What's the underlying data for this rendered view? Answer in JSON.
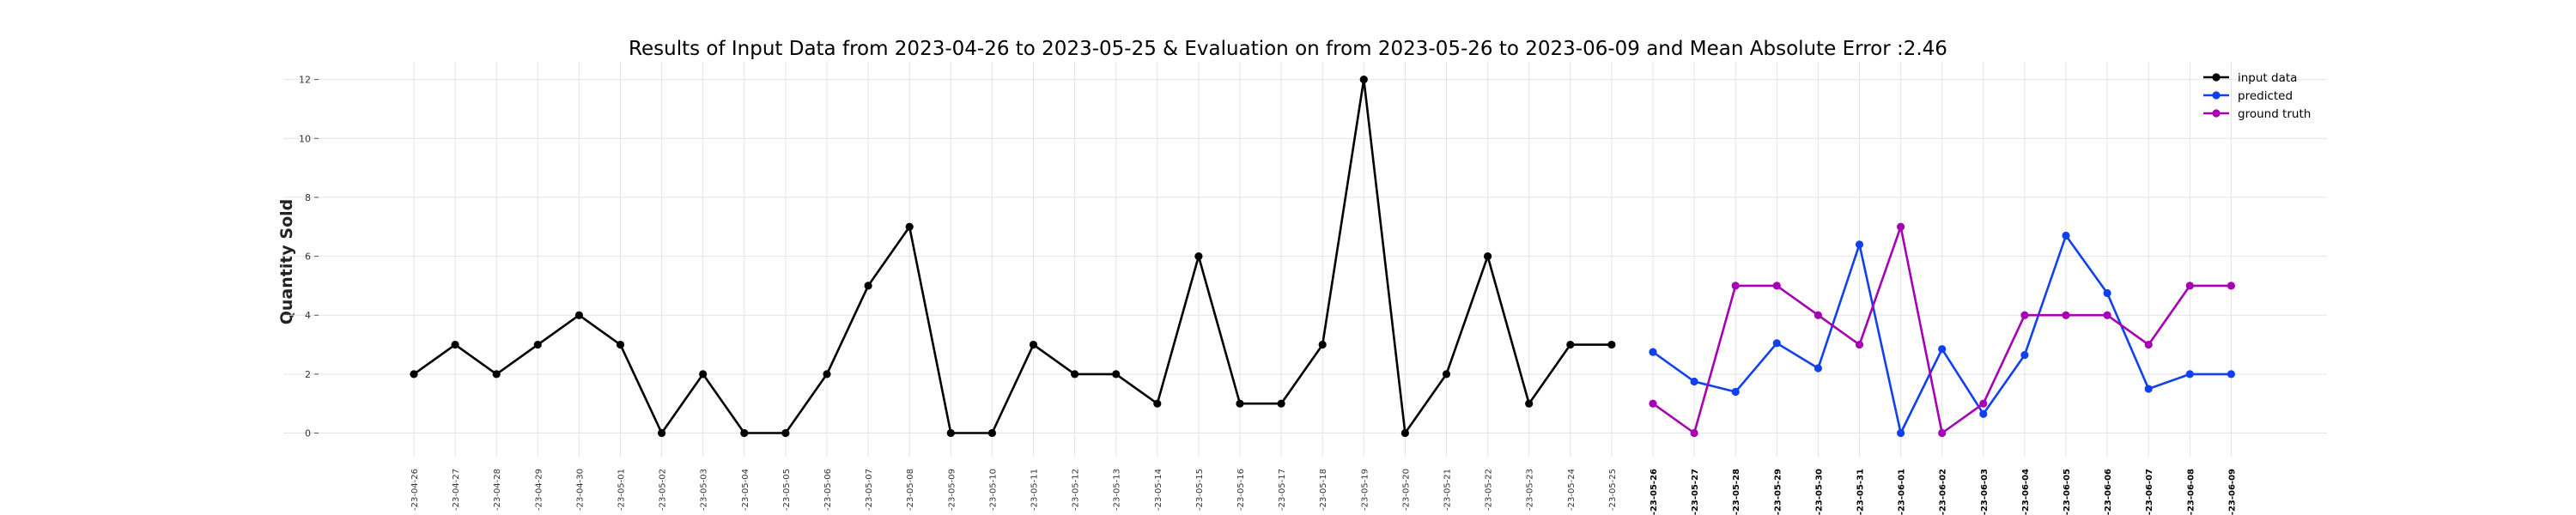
{
  "chart_data": {
    "type": "line",
    "title": "Results of Input Data from 2023-04-26 to 2023-05-25 & Evaluation on from 2023-05-26 to 2023-06-09 and Mean Absolute Error  :2.46",
    "ylabel": "Quantity Sold",
    "ylim": [
      -0.8,
      12.6
    ],
    "yticks": [
      0,
      2,
      4,
      6,
      8,
      10,
      12
    ],
    "grid": true,
    "legend_position": "top-right",
    "x": [
      "2023-04-26",
      "2023-04-27",
      "2023-04-28",
      "2023-04-29",
      "2023-04-30",
      "2023-05-01",
      "2023-05-02",
      "2023-05-03",
      "2023-05-04",
      "2023-05-05",
      "2023-05-06",
      "2023-05-07",
      "2023-05-08",
      "2023-05-09",
      "2023-05-10",
      "2023-05-11",
      "2023-05-12",
      "2023-05-13",
      "2023-05-14",
      "2023-05-15",
      "2023-05-16",
      "2023-05-17",
      "2023-05-18",
      "2023-05-19",
      "2023-05-20",
      "2023-05-21",
      "2023-05-22",
      "2023-05-23",
      "2023-05-24",
      "2023-05-25",
      "2023-05-26",
      "2023-05-27",
      "2023-05-28",
      "2023-05-29",
      "2023-05-30",
      "2023-05-31",
      "2023-06-01",
      "2023-06-02",
      "2023-06-03",
      "2023-06-04",
      "2023-06-05",
      "2023-06-06",
      "2023-06-07",
      "2023-06-08",
      "2023-06-09"
    ],
    "tick_labels": [
      "-23-04-26",
      "-23-04-27",
      "-23-04-28",
      "-23-04-29",
      "-23-04-30",
      "-23-05-01",
      "-23-05-02",
      "-23-05-03",
      "-23-05-04",
      "-23-05-05",
      "-23-05-06",
      "-23-05-07",
      "-23-05-08",
      "-23-05-09",
      "-23-05-10",
      "-23-05-11",
      "-23-05-12",
      "-23-05-13",
      "-23-05-14",
      "-23-05-15",
      "-23-05-16",
      "-23-05-17",
      "-23-05-18",
      "-23-05-19",
      "-23-05-20",
      "-23-05-21",
      "-23-05-22",
      "-23-05-23",
      "-23-05-24",
      "-23-05-25",
      "-23-05-26",
      "-23-05-27",
      "-23-05-28",
      "-23-05-29",
      "-23-05-30",
      "-23-05-31",
      "-23-06-01",
      "-23-06-02",
      "-23-06-03",
      "-23-06-04",
      "-23-06-05",
      "-23-06-06",
      "-23-06-07",
      "-23-06-08",
      "-23-06-09"
    ],
    "series": [
      {
        "name": "input data",
        "color": "#000000",
        "x": [
          "2023-04-26",
          "2023-04-27",
          "2023-04-28",
          "2023-04-29",
          "2023-04-30",
          "2023-05-01",
          "2023-05-02",
          "2023-05-03",
          "2023-05-04",
          "2023-05-05",
          "2023-05-06",
          "2023-05-07",
          "2023-05-08",
          "2023-05-09",
          "2023-05-10",
          "2023-05-11",
          "2023-05-12",
          "2023-05-13",
          "2023-05-14",
          "2023-05-15",
          "2023-05-16",
          "2023-05-17",
          "2023-05-18",
          "2023-05-19",
          "2023-05-20",
          "2023-05-21",
          "2023-05-22",
          "2023-05-23",
          "2023-05-24",
          "2023-05-25"
        ],
        "values": [
          2,
          3,
          2,
          3,
          4,
          3,
          0,
          2,
          0,
          0,
          2,
          5,
          7,
          0,
          0,
          3,
          2,
          2,
          1,
          6,
          1,
          1,
          3,
          12,
          0,
          2,
          6,
          1,
          3,
          3
        ]
      },
      {
        "name": "predicted",
        "color": "#1140ee",
        "x": [
          "2023-05-26",
          "2023-05-27",
          "2023-05-28",
          "2023-05-29",
          "2023-05-30",
          "2023-05-31",
          "2023-06-01",
          "2023-06-02",
          "2023-06-03",
          "2023-06-04",
          "2023-06-05",
          "2023-06-06",
          "2023-06-07",
          "2023-06-08",
          "2023-06-09"
        ],
        "values": [
          2.75,
          1.75,
          1.4,
          3.05,
          2.2,
          6.4,
          0,
          2.85,
          0.65,
          2.65,
          6.7,
          4.75,
          1.5,
          2,
          2
        ]
      },
      {
        "name": "ground truth",
        "color": "#a600b4",
        "x": [
          "2023-05-26",
          "2023-05-27",
          "2023-05-28",
          "2023-05-29",
          "2023-05-30",
          "2023-05-31",
          "2023-06-01",
          "2023-06-02",
          "2023-06-03",
          "2023-06-04",
          "2023-06-05",
          "2023-06-06",
          "2023-06-07",
          "2023-06-08",
          "2023-06-09"
        ],
        "values": [
          1,
          0,
          5,
          5,
          4,
          3,
          7,
          0,
          1,
          4,
          4,
          4,
          3,
          5,
          5
        ]
      }
    ]
  }
}
